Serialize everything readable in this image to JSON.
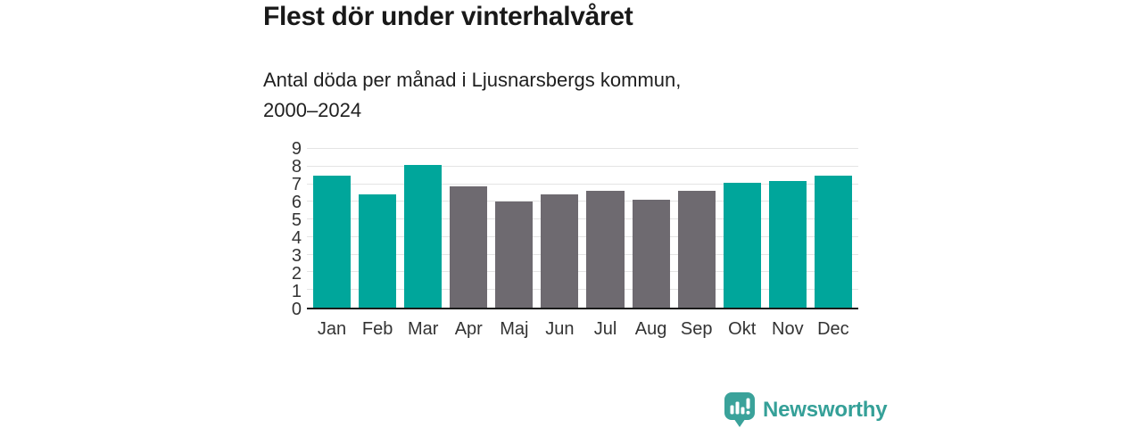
{
  "header": {
    "title": "Flest dör under vinterhalvåret",
    "subtitle": "Antal döda per månad i Ljusnarsbergs kommun,\n2000–2024"
  },
  "chart_data": {
    "type": "bar",
    "title": "Flest dör under vinterhalvåret",
    "subtitle": "Antal döda per månad i Ljusnarsbergs kommun, 2000–2024",
    "categories": [
      "Jan",
      "Feb",
      "Mar",
      "Apr",
      "Maj",
      "Jun",
      "Jul",
      "Aug",
      "Sep",
      "Okt",
      "Nov",
      "Dec"
    ],
    "values": [
      7.5,
      6.4,
      8.1,
      6.9,
      6.0,
      6.4,
      6.6,
      6.1,
      6.6,
      7.1,
      7.2,
      7.5
    ],
    "highlighted": [
      true,
      true,
      true,
      false,
      false,
      false,
      false,
      false,
      false,
      true,
      true,
      true
    ],
    "xlabel": "",
    "ylabel": "",
    "ylim": [
      0,
      9
    ],
    "yticks": [
      0,
      1,
      2,
      3,
      4,
      5,
      6,
      7,
      8,
      9
    ],
    "grid": "horizontal",
    "legend": "none",
    "colors": {
      "highlight_bar": "#00a69b",
      "default_bar": "#6e6a70",
      "gridline": "#e4e4e4",
      "baseline": "#1a1a1a",
      "axis_text": "#333333"
    }
  },
  "footer": {
    "brand": "Newsworthy",
    "logo_icon": "bar-chart-speech-bubble-icon",
    "brand_color": "#35a098"
  }
}
